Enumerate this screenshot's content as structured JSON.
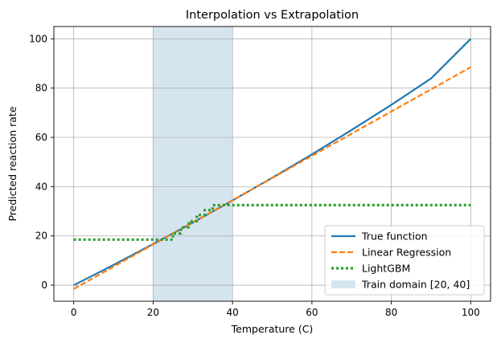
{
  "chart_data": {
    "type": "line",
    "title": "Interpolation vs Extrapolation",
    "xlabel": "Temperature (C)",
    "ylabel": "Predicted reaction rate",
    "xlim": [
      -5,
      105
    ],
    "ylim": [
      -6.5,
      105
    ],
    "xticks": [
      0,
      20,
      40,
      60,
      80,
      100
    ],
    "yticks": [
      0,
      20,
      40,
      60,
      80,
      100
    ],
    "grid": true,
    "legend_position": "lower-right",
    "shaded_region": {
      "name": "Train domain [20, 40]",
      "x": [
        20,
        40
      ],
      "color": "#d5e5f0"
    },
    "series": [
      {
        "name": "True function",
        "color": "#1f77b4",
        "style": "solid",
        "x": [
          0,
          10,
          20,
          30,
          40,
          50,
          60,
          70,
          80,
          90,
          100
        ],
        "y": [
          0,
          8.2,
          16.7,
          25.4,
          34.4,
          43.6,
          53.1,
          63.0,
          73.2,
          83.9,
          100.0
        ]
      },
      {
        "name": "Linear Regression",
        "color": "#ff7f0e",
        "style": "dashed",
        "x": [
          0,
          100
        ],
        "y": [
          -1.5,
          88.5
        ]
      },
      {
        "name": "LightGBM",
        "color": "#2ca02c",
        "style": "dotted",
        "x": [
          0,
          23,
          25,
          27,
          29,
          31,
          33,
          35,
          100
        ],
        "y": [
          18.5,
          18.5,
          21,
          23.5,
          26,
          28.5,
          30.5,
          32.5,
          32.5
        ],
        "step": true
      }
    ]
  }
}
